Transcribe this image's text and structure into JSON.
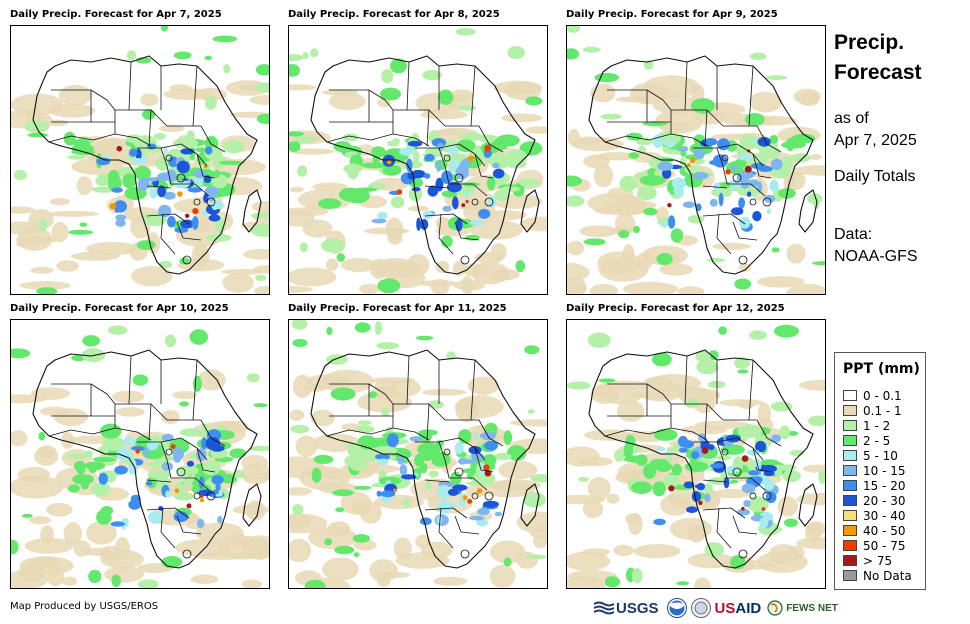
{
  "panels": [
    {
      "title": "Daily Precip. Forecast for Apr 7, 2025",
      "wet_level": 0.8
    },
    {
      "title": "Daily Precip. Forecast for Apr 8, 2025",
      "wet_level": 0.7
    },
    {
      "title": "Daily Precip. Forecast for Apr 9, 2025",
      "wet_level": 0.75
    },
    {
      "title": "Daily Precip. Forecast for Apr 10, 2025",
      "wet_level": 0.7
    },
    {
      "title": "Daily Precip. Forecast for Apr 11, 2025",
      "wet_level": 0.7
    },
    {
      "title": "Daily Precip. Forecast for Apr 12, 2025",
      "wet_level": 0.8
    }
  ],
  "info": {
    "title_line1": "Precip.",
    "title_line2": "Forecast",
    "as_of_line1": "as of",
    "as_of_line2": "Apr 7, 2025",
    "totals": "Daily Totals",
    "data_label": "Data:",
    "data_source": "NOAA-GFS"
  },
  "legend": {
    "title": "PPT (mm)",
    "items": [
      {
        "label": "0 - 0.1",
        "color": "#ffffff"
      },
      {
        "label": "0.1 - 1",
        "color": "#e8d9b5"
      },
      {
        "label": "1 - 2",
        "color": "#b5f0a8"
      },
      {
        "label": "2 - 5",
        "color": "#62e86a"
      },
      {
        "label": "5 - 10",
        "color": "#a8ecf0"
      },
      {
        "label": "10 - 15",
        "color": "#7fb6f0"
      },
      {
        "label": "15 - 20",
        "color": "#3e8ef0"
      },
      {
        "label": "20 - 30",
        "color": "#1b55d8"
      },
      {
        "label": "30 - 40",
        "color": "#f8de7a"
      },
      {
        "label": "40 - 50",
        "color": "#f09a00"
      },
      {
        "label": "50 - 75",
        "color": "#f03c00"
      },
      {
        "label": "> 75",
        "color": "#a81818"
      },
      {
        "label": "No Data",
        "color": "#9a9a9a"
      }
    ]
  },
  "credit": "Map Produced by USGS/EROS",
  "logos": {
    "usgs": "USGS",
    "usaid_us": "US",
    "usaid_aid": "AID",
    "fews": "FEWS NET"
  }
}
